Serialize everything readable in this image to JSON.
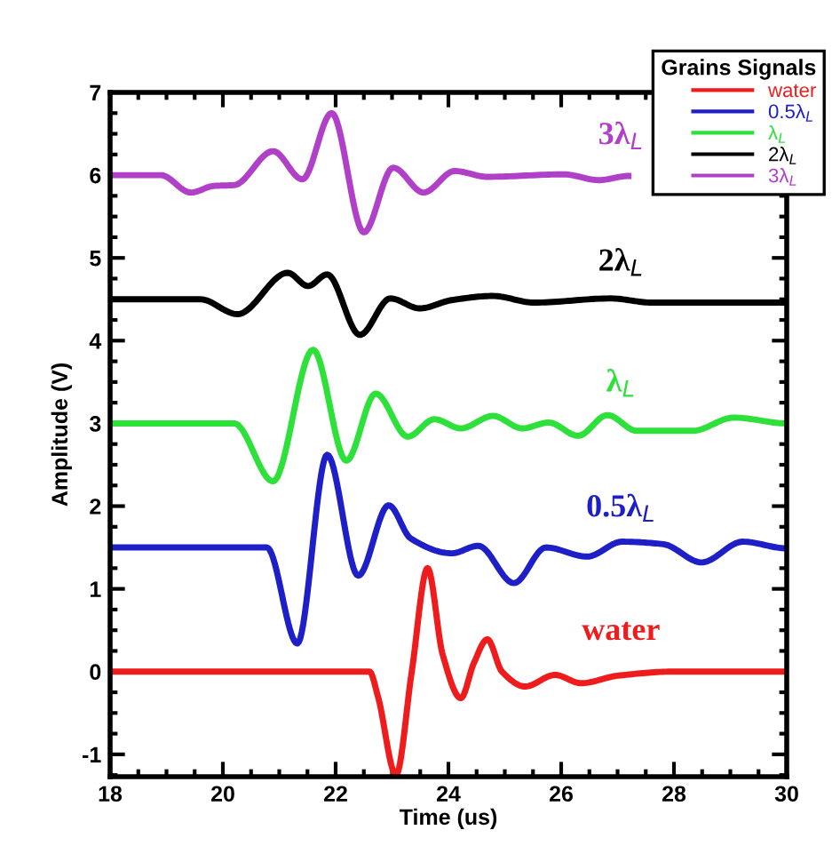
{
  "chart_data": {
    "type": "line",
    "xlabel": "Time (us)",
    "ylabel": "Amplitude (V)",
    "legend_title": "Grains Signals",
    "xlim": [
      18,
      30
    ],
    "xticks": [
      18,
      20,
      22,
      24,
      26,
      28,
      30
    ],
    "ylim": [
      -1.27,
      7
    ],
    "yticks": [
      -1,
      0,
      1,
      2,
      3,
      4,
      5,
      6,
      7
    ],
    "grid": false,
    "legend": "top right",
    "marker": "none",
    "line_style": "solid",
    "series": [
      {
        "name": "water",
        "color": "#ee1c1c",
        "x": [
          18,
          22.6,
          22.75,
          23.07,
          23.35,
          23.63,
          23.9,
          24.22,
          24.45,
          24.69,
          24.95,
          25.36,
          25.89,
          26.35,
          27,
          28,
          30
        ],
        "values": [
          0,
          0,
          -0.3,
          -1.25,
          0,
          1.25,
          0.2,
          -0.32,
          0.1,
          0.39,
          0,
          -0.18,
          -0.04,
          -0.14,
          -0.05,
          0,
          0
        ]
      },
      {
        "name": "0.5λ$_{L}$",
        "color": "#1f1fc8",
        "x": [
          18,
          20.78,
          21.32,
          21.85,
          22.4,
          22.94,
          23.33,
          24.06,
          24.53,
          25.16,
          25.73,
          26.46,
          27.08,
          27.81,
          28.49,
          29.22,
          30
        ],
        "values": [
          1.5,
          1.5,
          0.34,
          2.62,
          1.16,
          2.01,
          1.61,
          1.43,
          1.52,
          1.07,
          1.5,
          1.39,
          1.57,
          1.54,
          1.32,
          1.57,
          1.49
        ]
      },
      {
        "name": "λ$_{L}$",
        "color": "#2ee03a",
        "x": [
          18,
          20.2,
          20.89,
          21.6,
          22.19,
          22.71,
          23.28,
          23.75,
          24.22,
          24.79,
          25.31,
          25.78,
          26.3,
          26.82,
          27.34,
          28.33,
          29.06,
          30
        ],
        "values": [
          3,
          3,
          2.3,
          3.89,
          2.55,
          3.36,
          2.84,
          3.05,
          2.94,
          3.09,
          2.94,
          3.01,
          2.85,
          3.1,
          2.91,
          2.91,
          3.07,
          3
        ]
      },
      {
        "name": "2λ$_{L}$",
        "color": "#000000",
        "x": [
          18,
          19.6,
          20.26,
          21.15,
          21.51,
          21.85,
          22.43,
          22.97,
          23.49,
          24.06,
          24.79,
          25.52,
          26.88,
          27.6,
          30
        ],
        "values": [
          4.5,
          4.5,
          4.32,
          4.82,
          4.66,
          4.8,
          4.07,
          4.51,
          4.39,
          4.49,
          4.54,
          4.46,
          4.51,
          4.46,
          4.46
        ]
      },
      {
        "name": "3λ$_{L}$",
        "color": "#b040c8",
        "x": [
          18,
          18.9,
          19.43,
          19.84,
          20.2,
          20.89,
          21.41,
          21.93,
          22.5,
          23.02,
          23.56,
          24.11,
          24.69,
          26.04,
          26.67,
          27.19
        ],
        "values": [
          6,
          6,
          5.79,
          5.87,
          5.88,
          6.29,
          5.95,
          6.75,
          5.31,
          6.09,
          5.79,
          6.05,
          5.98,
          6.01,
          5.94,
          5.99
        ]
      }
    ],
    "annotations": [
      "3λ$_{L}$",
      "2λ$_{L}$",
      "λ$_{L}$",
      "0.5λ$_{L}$",
      "water"
    ]
  }
}
